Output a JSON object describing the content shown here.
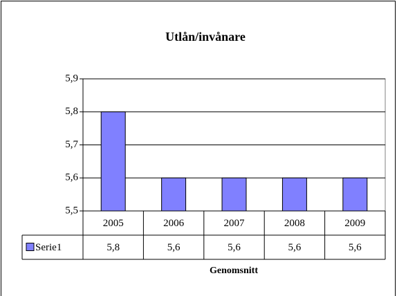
{
  "chart_data": {
    "type": "bar",
    "title": "Utlån/invånare",
    "x_label": "Genomsnitt",
    "categories": [
      "2005",
      "2006",
      "2007",
      "2008",
      "2009"
    ],
    "series": [
      {
        "name": "Serie1",
        "color": "#8080ff",
        "values": [
          5.8,
          5.6,
          5.6,
          5.6,
          5.6
        ],
        "value_labels": [
          "5,8",
          "5,6",
          "5,6",
          "5,6",
          "5,6"
        ]
      }
    ],
    "ylim": [
      5.5,
      5.9
    ],
    "yticks": [
      {
        "value": 5.5,
        "label": "5,5"
      },
      {
        "value": 5.6,
        "label": "5,6"
      },
      {
        "value": 5.7,
        "label": "5,7"
      },
      {
        "value": 5.8,
        "label": "5,8"
      },
      {
        "value": 5.9,
        "label": "5,9"
      }
    ],
    "grid": true
  }
}
